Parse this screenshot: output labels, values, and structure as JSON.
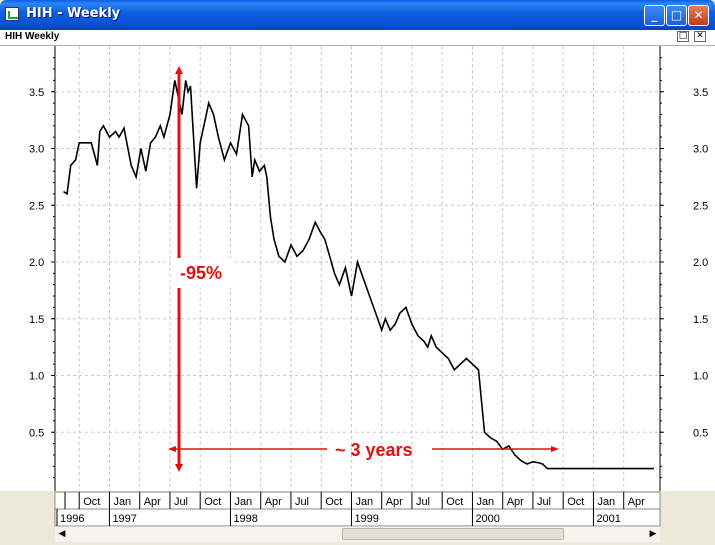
{
  "window": {
    "title": "HIH - Weekly"
  },
  "chart_window": {
    "title": "HIH Weekly"
  },
  "chart_data": {
    "type": "line",
    "ylim": [
      0,
      3.9
    ],
    "yticks": [
      "0.5",
      "1.0",
      "1.5",
      "2.0",
      "2.5",
      "3.0",
      "3.5"
    ],
    "grid": true,
    "month_labels": [
      "Oct",
      "Jan",
      "Apr",
      "Jul",
      "Oct",
      "Jan",
      "Apr",
      "Jul",
      "Oct",
      "Jan",
      "Apr",
      "Jul",
      "Oct",
      "Jan",
      "Apr",
      "Jul",
      "Oct",
      "Jan",
      "Apr"
    ],
    "year_labels": [
      "1996",
      "1997",
      "1998",
      "1999",
      "2000",
      "2001"
    ],
    "series": [
      {
        "color": "#000000",
        "x": [
          1996.62,
          1996.65,
          1996.68,
          1996.72,
          1996.75,
          1996.8,
          1996.85,
          1996.9,
          1996.92,
          1996.95,
          1997.0,
          1997.05,
          1997.08,
          1997.12,
          1997.18,
          1997.22,
          1997.26,
          1997.3,
          1997.34,
          1997.38,
          1997.42,
          1997.45,
          1997.5,
          1997.54,
          1997.57,
          1997.6,
          1997.63,
          1997.65,
          1997.67,
          1997.7,
          1997.72,
          1997.75,
          1997.8,
          1997.82,
          1997.86,
          1997.9,
          1997.95,
          1998.0,
          1998.05,
          1998.1,
          1998.15,
          1998.18,
          1998.2,
          1998.24,
          1998.28,
          1998.3,
          1998.33,
          1998.36,
          1998.4,
          1998.45,
          1998.5,
          1998.55,
          1998.6,
          1998.65,
          1998.7,
          1998.75,
          1998.78,
          1998.82,
          1998.86,
          1998.9,
          1998.95,
          1999.0,
          1999.05,
          1999.1,
          1999.15,
          1999.2,
          1999.25,
          1999.28,
          1999.32,
          1999.36,
          1999.4,
          1999.45,
          1999.5,
          1999.55,
          1999.6,
          1999.63,
          1999.66,
          1999.7,
          1999.75,
          1999.8,
          1999.85,
          1999.9,
          1999.95,
          2000.0,
          2000.05,
          2000.1,
          2000.15,
          2000.2,
          2000.25,
          2000.3,
          2000.35,
          2000.4,
          2000.45,
          2000.5,
          2000.55,
          2000.58,
          2000.6,
          2000.62,
          2000.66,
          2000.7,
          2000.75,
          2000.8,
          2000.85,
          2000.9,
          2000.95,
          2001.0,
          2001.05,
          2001.1,
          2001.2,
          2001.3,
          2001.4,
          2001.5
        ],
        "y": [
          2.62,
          2.6,
          2.85,
          2.9,
          3.05,
          3.05,
          3.05,
          2.85,
          3.15,
          3.2,
          3.1,
          3.15,
          3.1,
          3.18,
          2.85,
          2.75,
          3.0,
          2.8,
          3.05,
          3.1,
          3.2,
          3.1,
          3.3,
          3.6,
          3.45,
          3.3,
          3.6,
          3.5,
          3.55,
          3.0,
          2.65,
          3.05,
          3.3,
          3.4,
          3.3,
          3.1,
          2.9,
          3.05,
          2.95,
          3.3,
          3.2,
          2.75,
          2.9,
          2.8,
          2.85,
          2.75,
          2.4,
          2.2,
          2.05,
          2.0,
          2.15,
          2.05,
          2.1,
          2.2,
          2.35,
          2.25,
          2.2,
          2.05,
          1.9,
          1.8,
          1.95,
          1.7,
          2.0,
          1.85,
          1.7,
          1.55,
          1.4,
          1.5,
          1.4,
          1.45,
          1.55,
          1.6,
          1.45,
          1.35,
          1.3,
          1.25,
          1.35,
          1.25,
          1.2,
          1.15,
          1.05,
          1.1,
          1.15,
          1.1,
          1.05,
          0.5,
          0.45,
          0.42,
          0.35,
          0.38,
          0.3,
          0.25,
          0.22,
          0.24,
          0.23,
          0.22,
          0.2,
          0.18,
          0.18,
          0.18,
          0.18,
          0.18,
          0.18,
          0.18,
          0.18,
          0.18,
          0.18,
          0.18,
          0.18,
          0.18,
          0.18,
          0.18
        ]
      }
    ],
    "annotations": [
      {
        "text": "-95%",
        "color": "#E01010"
      },
      {
        "text": "~ 3 years",
        "color": "#E01010"
      }
    ]
  }
}
